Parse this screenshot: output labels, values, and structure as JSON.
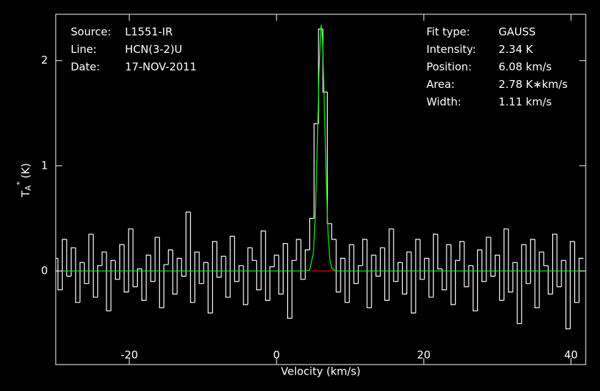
{
  "chart_data": {
    "type": "line",
    "xlabel": "Velocity (km/s)",
    "ylabel": {
      "main": "T",
      "sub": "A",
      "sup": "*",
      "unit": "(K)"
    },
    "xlim": [
      -30,
      42
    ],
    "ylim": [
      -0.89,
      2.44
    ],
    "xticks": [
      -20,
      0,
      20,
      40
    ],
    "yticks": [
      0,
      1,
      2
    ],
    "info_left": [
      {
        "label": "Source:",
        "value": "L1551-IR"
      },
      {
        "label": "Line:",
        "value": "HCN(3-2)U"
      },
      {
        "label": "Date:",
        "value": "17-NOV-2011"
      }
    ],
    "info_right": [
      {
        "label": "Fit type:",
        "value": "GAUSS"
      },
      {
        "label": "Intensity:",
        "value": "2.34 K"
      },
      {
        "label": "Position:",
        "value": "6.08 km/s"
      },
      {
        "label": "Area:",
        "value": "2.78 K∗km/s"
      },
      {
        "label": "Width:",
        "value": "1.11 km/s"
      }
    ],
    "series": [
      {
        "color": "#ffffff",
        "step": true,
        "x": [
          -30,
          -29.4,
          -28.8,
          -28.2,
          -27.6,
          -27,
          -26.4,
          -25.8,
          -25.2,
          -24.6,
          -24,
          -23.4,
          -22.8,
          -22.2,
          -21.6,
          -21,
          -20.4,
          -19.8,
          -19.2,
          -18.6,
          -18,
          -17.4,
          -16.8,
          -16.2,
          -15.6,
          -15,
          -14.4,
          -13.8,
          -13.2,
          -12.6,
          -12,
          -11.4,
          -10.8,
          -10.2,
          -9.6,
          -9,
          -8.4,
          -7.8,
          -7.2,
          -6.6,
          -6,
          -5.4,
          -4.8,
          -4.2,
          -3.6,
          -3,
          -2.4,
          -1.8,
          -1.2,
          -0.6,
          0,
          0.6,
          1.2,
          1.8,
          2.4,
          3,
          3.6,
          4.2,
          4.8,
          5.4,
          6,
          6.6,
          7.2,
          7.8,
          8.4,
          9,
          9.6,
          10.2,
          10.8,
          11.4,
          12,
          12.6,
          13.2,
          13.8,
          14.4,
          15,
          15.6,
          16.2,
          16.8,
          17.4,
          18,
          18.6,
          19.2,
          19.8,
          20.4,
          21,
          21.6,
          22.2,
          22.8,
          23.4,
          24,
          24.6,
          25.2,
          25.8,
          26.4,
          27,
          27.6,
          28.2,
          28.8,
          29.4,
          30,
          30.6,
          31.2,
          31.8,
          32.4,
          33,
          33.6,
          34.2,
          34.8,
          35.4,
          36,
          36.6,
          37.2,
          37.8,
          38.4,
          39,
          39.6,
          40.2,
          40.8,
          41.4
        ],
        "values": [
          0.12,
          -0.18,
          0.3,
          -0.05,
          0.22,
          -0.3,
          0.08,
          -0.12,
          0.35,
          -0.25,
          0.05,
          0.18,
          -0.38,
          0.1,
          -0.08,
          0.25,
          -0.2,
          0.4,
          -0.15,
          0.02,
          -0.28,
          0.15,
          -0.1,
          0.32,
          -0.35,
          0.06,
          0.2,
          -0.22,
          0.12,
          -0.05,
          0.56,
          -0.3,
          0.18,
          -0.12,
          0.08,
          -0.4,
          0.28,
          -0.06,
          0.14,
          -0.25,
          0.33,
          -0.1,
          0.05,
          -0.32,
          0.22,
          0.1,
          -0.18,
          0.38,
          -0.28,
          0.04,
          0.15,
          -0.22,
          0.26,
          -0.45,
          0.1,
          0.3,
          -0.08,
          0.2,
          0.5,
          1.4,
          2.3,
          1.7,
          0.45,
          0.3,
          -0.2,
          0.12,
          -0.3,
          0.25,
          -0.12,
          0.05,
          0.3,
          -0.35,
          0.15,
          -0.05,
          0.22,
          -0.28,
          0.4,
          -0.1,
          0.08,
          -0.22,
          0.18,
          -0.4,
          0.3,
          -0.08,
          0.12,
          -0.25,
          0.35,
          0.02,
          -0.18,
          0.25,
          -0.32,
          0.1,
          0.28,
          -0.15,
          0.05,
          -0.38,
          0.2,
          -0.1,
          0.32,
          -0.05,
          0.15,
          -0.28,
          0.4,
          -0.2,
          0.08,
          -0.5,
          0.25,
          -0.12,
          0.3,
          -0.35,
          0.18,
          0.05,
          -0.22,
          0.35,
          -0.15,
          0.1,
          -0.55,
          0.28,
          -0.3,
          0.12
        ]
      },
      {
        "color": "#ff0000",
        "x": [
          4.8,
          8.5
        ],
        "values": [
          0,
          0
        ]
      },
      {
        "color": "#00ff00",
        "x": [
          -30,
          3.5,
          4,
          4.5,
          5,
          5.25,
          5.5,
          5.75,
          6,
          6.08,
          6.25,
          6.5,
          6.75,
          7,
          7.25,
          7.5,
          8,
          42
        ],
        "values": [
          0,
          0,
          0,
          0.008,
          0.17,
          0.5,
          1.1,
          1.83,
          2.31,
          2.34,
          2.19,
          1.57,
          0.85,
          0.35,
          0.11,
          0.025,
          0,
          0
        ]
      }
    ]
  }
}
